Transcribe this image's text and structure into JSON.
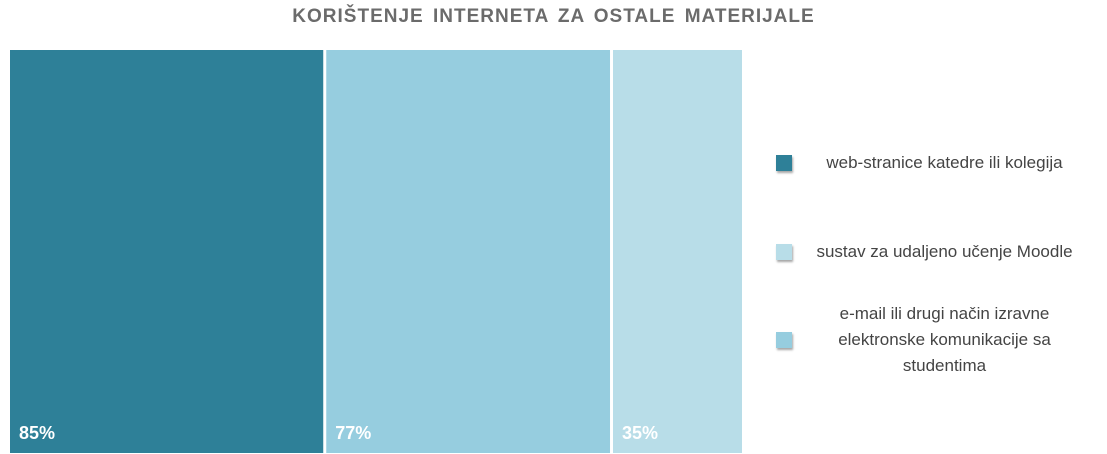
{
  "chart_data": {
    "type": "bar",
    "title": "KORIŠTENJE INTERNETA ZA OSTALE MATERIJALE",
    "series": [
      {
        "name": "web-stranice katedre ili kolegija",
        "color": "#2e8098",
        "values": [
          85
        ],
        "value_labels": [
          "85%"
        ]
      },
      {
        "name": "e-mail ili drugi način izravne elektronske komunikacije sa studentima",
        "color": "#96cddf",
        "values": [
          77
        ],
        "value_labels": [
          "77%"
        ]
      },
      {
        "name": "sustav za udaljeno učenje Moodle",
        "color": "#b8dde8",
        "values": [
          35
        ],
        "value_labels": [
          "35%"
        ]
      }
    ]
  }
}
